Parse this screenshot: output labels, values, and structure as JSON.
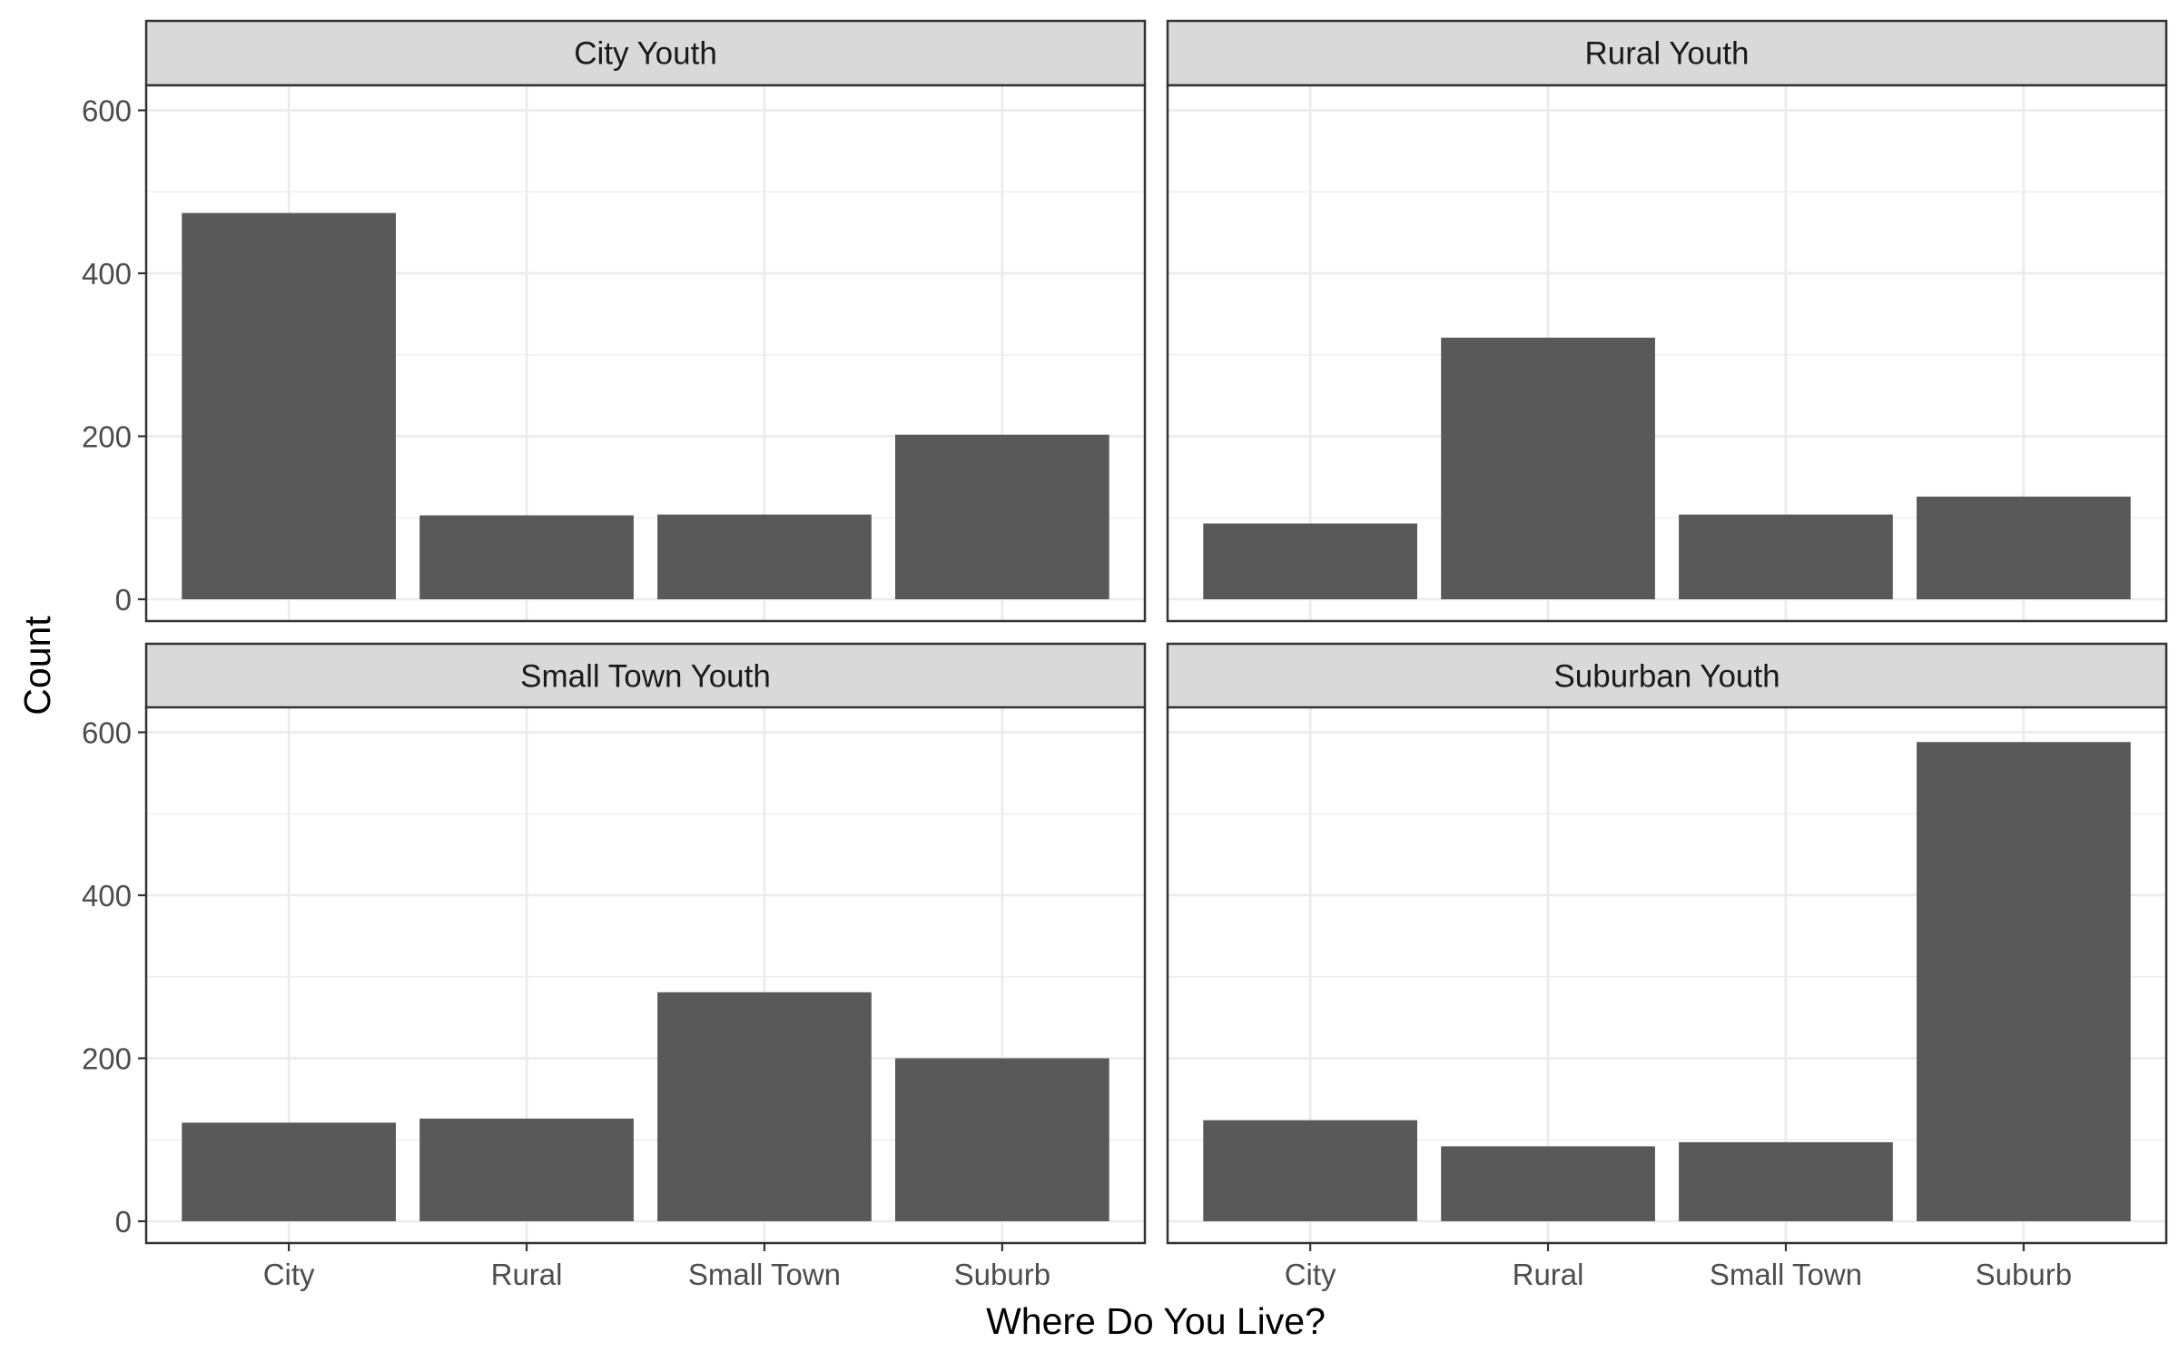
{
  "chart_data": {
    "type": "bar",
    "layout": "facet-grid-2x2",
    "xlabel": "Where Do You Live?",
    "ylabel": "Count",
    "categories": [
      "City",
      "Rural",
      "Small Town",
      "Suburb"
    ],
    "ylim": [
      0,
      615
    ],
    "yticks": [
      0,
      200,
      400,
      600
    ],
    "grid": true,
    "bar_color": "#595959",
    "facets": [
      {
        "name": "City Youth",
        "values": [
          474,
          103,
          104,
          202
        ]
      },
      {
        "name": "Rural Youth",
        "values": [
          93,
          321,
          104,
          126
        ]
      },
      {
        "name": "Small Town Youth",
        "values": [
          121,
          126,
          281,
          200
        ]
      },
      {
        "name": "Suburban Youth",
        "values": [
          124,
          92,
          97,
          588
        ]
      }
    ]
  }
}
